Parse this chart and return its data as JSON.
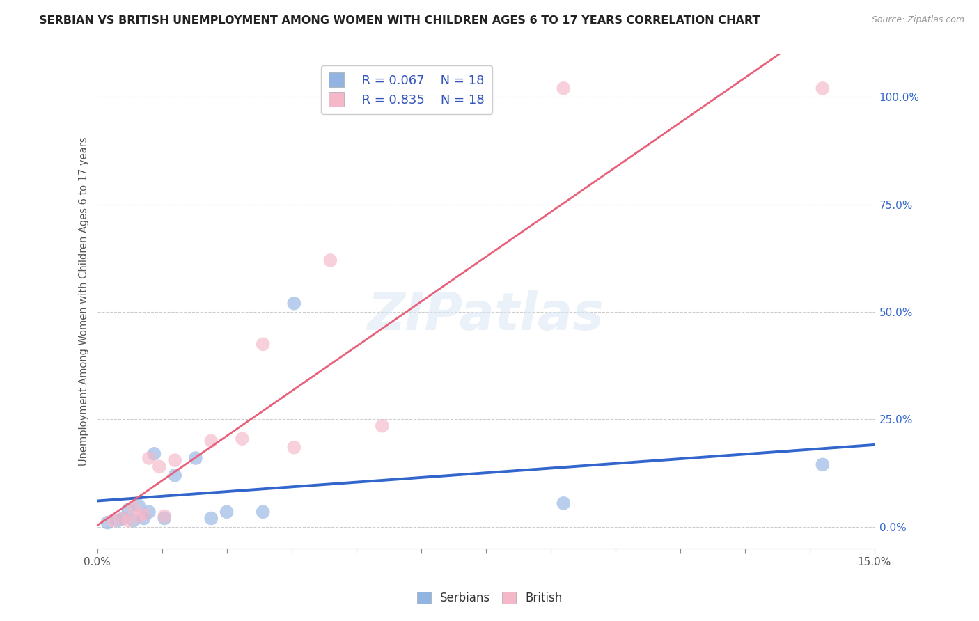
{
  "title": "SERBIAN VS BRITISH UNEMPLOYMENT AMONG WOMEN WITH CHILDREN AGES 6 TO 17 YEARS CORRELATION CHART",
  "source": "Source: ZipAtlas.com",
  "ylabel": "Unemployment Among Women with Children Ages 6 to 17 years",
  "xlim": [
    0.0,
    0.15
  ],
  "ylim": [
    -0.05,
    1.1
  ],
  "xtick_positions": [
    0.0,
    0.0125,
    0.025,
    0.0375,
    0.05,
    0.0625,
    0.075,
    0.0875,
    0.1,
    0.1125,
    0.125,
    0.1375,
    0.15
  ],
  "xtick_labels": [
    "0.0%",
    "",
    "",
    "",
    "",
    "",
    "",
    "",
    "",
    "",
    "",
    "",
    "15.0%"
  ],
  "ytick_vals_right": [
    0.0,
    0.25,
    0.5,
    0.75,
    1.0
  ],
  "ytick_labels_right": [
    "0.0%",
    "25.0%",
    "50.0%",
    "75.0%",
    "100.0%"
  ],
  "serbian_color": "#92B4E3",
  "british_color": "#F5B8C8",
  "serbian_line_color": "#3366CC",
  "british_line_color": "#E8607A",
  "legend_text_color": "#3355BB",
  "watermark_text": "ZIPatlas",
  "R_serbian": 0.067,
  "N_serbian": 18,
  "R_british": 0.835,
  "N_british": 18,
  "serbian_x": [
    0.002,
    0.004,
    0.005,
    0.006,
    0.007,
    0.008,
    0.009,
    0.01,
    0.011,
    0.013,
    0.015,
    0.019,
    0.022,
    0.025,
    0.032,
    0.038,
    0.09,
    0.14
  ],
  "serbian_y": [
    0.01,
    0.015,
    0.02,
    0.04,
    0.015,
    0.05,
    0.02,
    0.035,
    0.17,
    0.02,
    0.12,
    0.16,
    0.02,
    0.035,
    0.035,
    0.52,
    0.055,
    0.145
  ],
  "british_x": [
    0.003,
    0.005,
    0.006,
    0.007,
    0.008,
    0.009,
    0.01,
    0.012,
    0.013,
    0.015,
    0.022,
    0.028,
    0.032,
    0.038,
    0.045,
    0.055,
    0.09,
    0.14
  ],
  "british_y": [
    0.015,
    0.02,
    0.015,
    0.045,
    0.025,
    0.03,
    0.16,
    0.14,
    0.025,
    0.155,
    0.2,
    0.205,
    0.425,
    0.185,
    0.62,
    0.235,
    1.02,
    1.02
  ],
  "figsize": [
    14.06,
    8.92
  ],
  "dpi": 100
}
